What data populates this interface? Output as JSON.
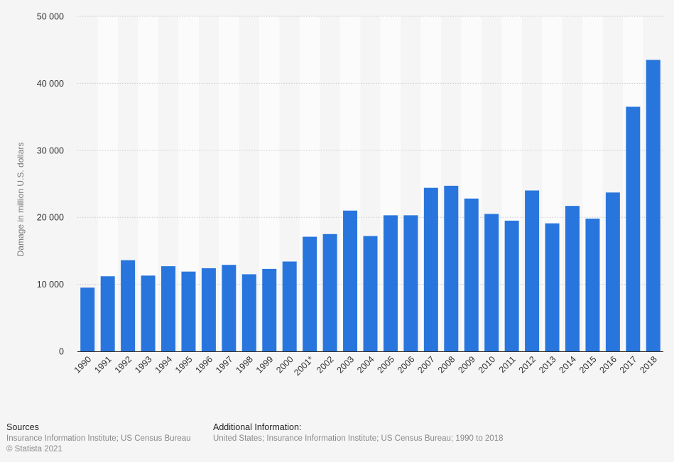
{
  "chart_data": {
    "type": "bar",
    "title": "",
    "xlabel": "",
    "ylabel": "Damage in million U.S. dollars",
    "ylim": [
      0,
      50000
    ],
    "yticks": [
      0,
      10000,
      20000,
      30000,
      40000,
      50000
    ],
    "ytick_labels": [
      "0",
      "10 000",
      "20 000",
      "30 000",
      "40 000",
      "50 000"
    ],
    "grid": true,
    "bar_color": "#2876dd",
    "categories": [
      "1990",
      "1991",
      "1992",
      "1993",
      "1994",
      "1995",
      "1996",
      "1997",
      "1998",
      "1999",
      "2000",
      "2001*",
      "2002",
      "2003",
      "2004",
      "2005",
      "2006",
      "2007",
      "2008",
      "2009",
      "2010",
      "2011",
      "2012",
      "2013",
      "2014",
      "2015",
      "2016",
      "2017",
      "2018"
    ],
    "values": [
      9500,
      11200,
      13600,
      11300,
      12700,
      11900,
      12400,
      12900,
      11500,
      12300,
      13400,
      17100,
      17500,
      21000,
      17200,
      20300,
      20300,
      24400,
      24700,
      22800,
      20500,
      19500,
      24000,
      19100,
      21700,
      19800,
      23700,
      36500,
      43500
    ]
  },
  "footer": {
    "sources_heading": "Sources",
    "sources_text": "Insurance Information Institute; US Census Bureau",
    "copyright": "© Statista 2021",
    "additional_heading": "Additional Information:",
    "additional_text": "United States; Insurance Information Institute; US Census Bureau; 1990 to 2018"
  }
}
